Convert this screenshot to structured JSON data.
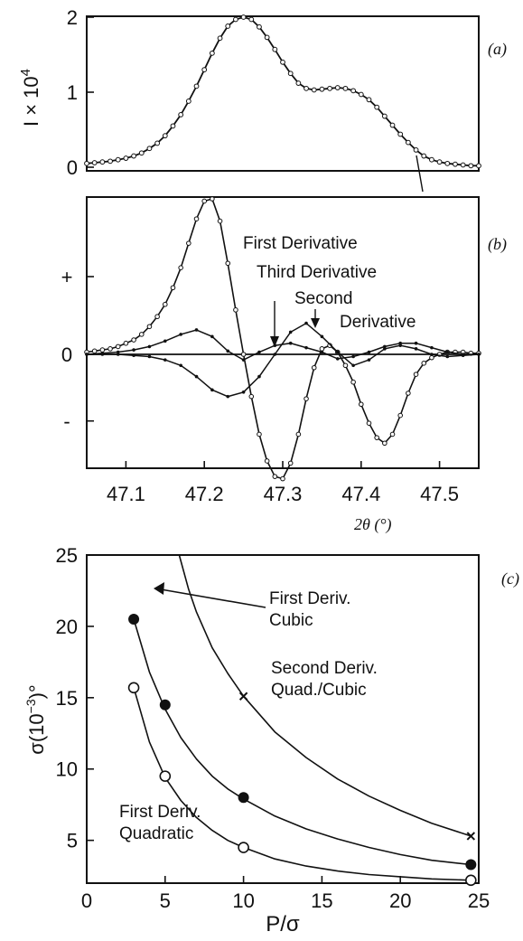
{
  "chart_data": [
    {
      "type": "line",
      "panel_label": "(a)",
      "ylabel": "I × 10",
      "ylabel_sup": "4",
      "xlim": [
        47.05,
        47.55
      ],
      "ylim": [
        0,
        2
      ],
      "yticks": [
        {
          "v": 0,
          "label": "0"
        },
        {
          "v": 1,
          "label": "1"
        },
        {
          "v": 2,
          "label": "2"
        }
      ],
      "series": [
        {
          "x": [
            47.05,
            47.06,
            47.07,
            47.08,
            47.09,
            47.1,
            47.11,
            47.12,
            47.13,
            47.14,
            47.15,
            47.16,
            47.17,
            47.18,
            47.19,
            47.2,
            47.21,
            47.22,
            47.23,
            47.24,
            47.25,
            47.26,
            47.27,
            47.28,
            47.29,
            47.3,
            47.31,
            47.32,
            47.33,
            47.34,
            47.35,
            47.36,
            47.37,
            47.38,
            47.39,
            47.4,
            47.41,
            47.42,
            47.43,
            47.44,
            47.45,
            47.46,
            47.47,
            47.48,
            47.49,
            47.5,
            47.51,
            47.52,
            47.53,
            47.54,
            47.55
          ],
          "y": [
            0.05,
            0.06,
            0.07,
            0.08,
            0.1,
            0.12,
            0.15,
            0.19,
            0.25,
            0.32,
            0.42,
            0.55,
            0.7,
            0.88,
            1.08,
            1.3,
            1.52,
            1.72,
            1.88,
            1.97,
            2.0,
            1.97,
            1.87,
            1.73,
            1.57,
            1.4,
            1.25,
            1.12,
            1.05,
            1.03,
            1.04,
            1.05,
            1.06,
            1.05,
            1.02,
            0.97,
            0.9,
            0.8,
            0.68,
            0.56,
            0.44,
            0.33,
            0.23,
            0.15,
            0.1,
            0.07,
            0.05,
            0.04,
            0.03,
            0.02,
            0.02
          ]
        }
      ]
    },
    {
      "type": "line",
      "panel_label": "(b)",
      "xlim": [
        47.05,
        47.55
      ],
      "ylim": [
        -1.1,
        1.4
      ],
      "xticks": [
        47.1,
        47.2,
        47.3,
        47.4,
        47.5
      ],
      "xtick_labels": [
        "47.1",
        "47.2",
        "47.3",
        "47.4",
        "47.5"
      ],
      "xlabel": "2θ (°)",
      "yticks": [
        {
          "v": 0.7,
          "label": "+"
        },
        {
          "v": 0,
          "label": "0"
        },
        {
          "v": -0.6,
          "label": "-"
        }
      ],
      "annotations": [
        "First Derivative",
        "Third Derivative",
        "Second",
        "Derivative"
      ],
      "series": [
        {
          "name": "First Derivative",
          "x": [
            47.05,
            47.06,
            47.07,
            47.08,
            47.09,
            47.1,
            47.11,
            47.12,
            47.13,
            47.14,
            47.15,
            47.16,
            47.17,
            47.18,
            47.19,
            47.2,
            47.21,
            47.22,
            47.23,
            47.24,
            47.25,
            47.26,
            47.27,
            47.28,
            47.29,
            47.3,
            47.31,
            47.32,
            47.33,
            47.34,
            47.35,
            47.36,
            47.37,
            47.38,
            47.39,
            47.4,
            47.41,
            47.42,
            47.43,
            47.44,
            47.45,
            47.46,
            47.47,
            47.48,
            47.49,
            47.5,
            47.51,
            47.52,
            47.53,
            47.54,
            47.55
          ],
          "y": [
            0.02,
            0.03,
            0.04,
            0.05,
            0.07,
            0.1,
            0.13,
            0.18,
            0.25,
            0.34,
            0.45,
            0.6,
            0.78,
            1.0,
            1.22,
            1.38,
            1.4,
            1.2,
            0.82,
            0.4,
            0.0,
            -0.38,
            -0.72,
            -0.96,
            -1.1,
            -1.12,
            -0.98,
            -0.72,
            -0.4,
            -0.12,
            0.05,
            0.08,
            0.02,
            -0.1,
            -0.25,
            -0.45,
            -0.62,
            -0.75,
            -0.8,
            -0.72,
            -0.55,
            -0.35,
            -0.18,
            -0.08,
            -0.03,
            0.0,
            0.02,
            0.02,
            0.02,
            0.01,
            0.01
          ]
        },
        {
          "name": "Second Derivative",
          "x": [
            47.05,
            47.07,
            47.09,
            47.11,
            47.13,
            47.15,
            47.17,
            47.19,
            47.21,
            47.23,
            47.25,
            47.27,
            47.29,
            47.31,
            47.33,
            47.35,
            47.37,
            47.39,
            47.41,
            47.43,
            47.45,
            47.47,
            47.49,
            47.51,
            47.53,
            47.55
          ],
          "y": [
            0.0,
            0.0,
            0.0,
            -0.01,
            -0.02,
            -0.05,
            -0.1,
            -0.2,
            -0.32,
            -0.38,
            -0.34,
            -0.2,
            0.0,
            0.2,
            0.28,
            0.16,
            0.02,
            -0.1,
            -0.05,
            0.05,
            0.08,
            0.05,
            0.0,
            -0.02,
            -0.01,
            0.0
          ]
        },
        {
          "name": "Third Derivative",
          "x": [
            47.05,
            47.07,
            47.09,
            47.11,
            47.13,
            47.15,
            47.17,
            47.19,
            47.21,
            47.23,
            47.25,
            47.27,
            47.29,
            47.31,
            47.33,
            47.35,
            47.37,
            47.39,
            47.41,
            47.43,
            47.45,
            47.47,
            47.49,
            47.51,
            47.53,
            47.55
          ],
          "y": [
            0.0,
            0.01,
            0.02,
            0.04,
            0.07,
            0.12,
            0.18,
            0.22,
            0.16,
            0.03,
            -0.05,
            0.02,
            0.08,
            0.1,
            0.06,
            0.02,
            -0.04,
            -0.02,
            0.02,
            0.07,
            0.1,
            0.1,
            0.06,
            0.02,
            0.0,
            0.0
          ]
        }
      ]
    },
    {
      "type": "line",
      "panel_label": "(c)",
      "xlabel": "P/σ",
      "ylabel": "σ(10",
      "ylabel_sup": "−3",
      "ylabel_tail": ")°",
      "xlim": [
        0,
        25
      ],
      "ylim": [
        2,
        25
      ],
      "xticks": [
        0,
        5,
        10,
        15,
        20,
        25
      ],
      "yticks": [
        5,
        10,
        15,
        20,
        25
      ],
      "series": [
        {
          "name": "First Deriv. Cubic",
          "marker": "filled-circle",
          "x": [
            3,
            5,
            10,
            24.5
          ],
          "y": [
            20.5,
            14.5,
            8.0,
            3.3
          ],
          "curve_x": [
            3,
            4,
            5,
            6,
            7,
            8,
            9,
            10,
            12,
            14,
            16,
            18,
            20,
            22,
            24.5
          ],
          "curve_y": [
            20.5,
            16.8,
            14.2,
            12.2,
            10.7,
            9.5,
            8.6,
            7.9,
            6.7,
            5.8,
            5.1,
            4.5,
            4.0,
            3.6,
            3.3
          ]
        },
        {
          "name": "First Deriv. Quadratic",
          "marker": "open-circle",
          "x": [
            3,
            5,
            10,
            24.5
          ],
          "y": [
            15.7,
            9.5,
            4.5,
            2.2
          ],
          "curve_x": [
            3,
            4,
            5,
            6,
            7,
            8,
            9,
            10,
            12,
            14,
            16,
            18,
            20,
            22,
            24.5
          ],
          "curve_y": [
            15.7,
            11.9,
            9.4,
            7.8,
            6.6,
            5.7,
            5.0,
            4.5,
            3.7,
            3.2,
            2.85,
            2.6,
            2.45,
            2.3,
            2.2
          ]
        },
        {
          "name": "Second Deriv. Quad./Cubic",
          "marker": "cross",
          "x": [
            10,
            24.5
          ],
          "y": [
            15.1,
            5.3
          ],
          "curve_x": [
            5.9,
            6.5,
            7,
            8,
            9,
            10,
            12,
            14,
            16,
            18,
            20,
            22,
            24.5
          ],
          "curve_y": [
            25,
            22.6,
            21.0,
            18.5,
            16.7,
            15.1,
            12.6,
            10.8,
            9.3,
            8.1,
            7.1,
            6.2,
            5.3
          ]
        }
      ],
      "labels": {
        "cubic_line1": "First Deriv.",
        "cubic_line2": "Cubic",
        "second_line1": "Second Deriv.",
        "second_line2": "Quad./Cubic",
        "quad_line1": "First Deriv.",
        "quad_line2": "Quadratic"
      }
    }
  ]
}
